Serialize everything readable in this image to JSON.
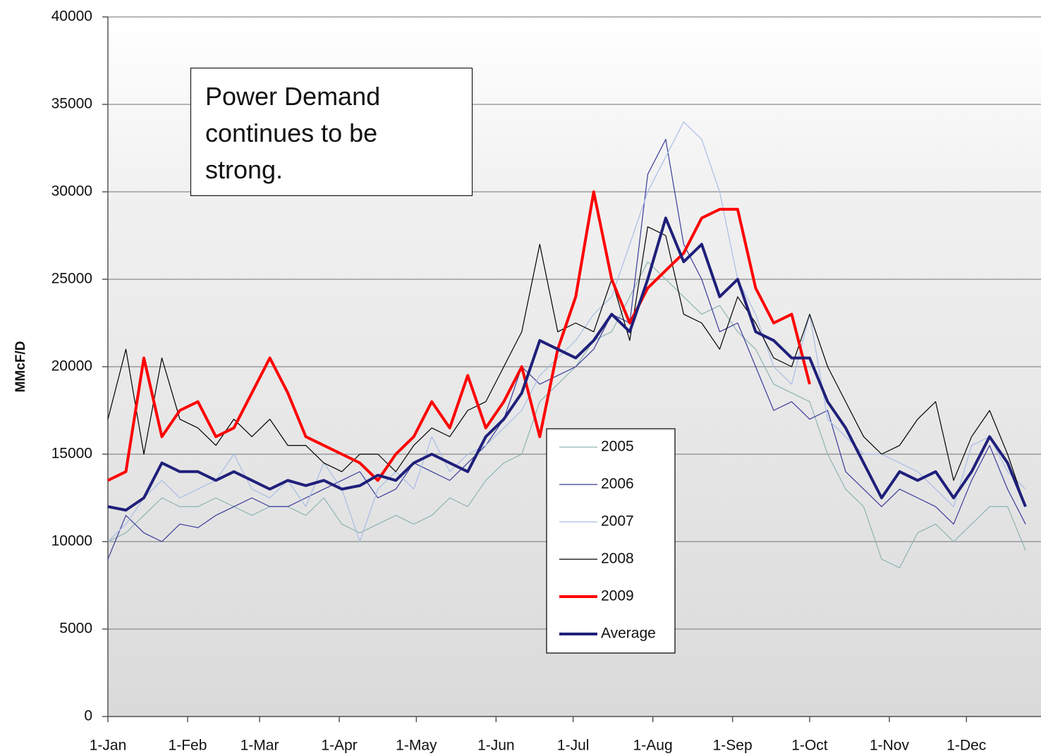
{
  "chart_data": {
    "type": "line",
    "y_label": "MMcF/D",
    "annotation": "Power Demand continues to be strong.",
    "grid": true,
    "xlim": [
      0,
      363
    ],
    "ylim": [
      0,
      40000
    ],
    "yticks": [
      0,
      5000,
      10000,
      15000,
      20000,
      25000,
      30000,
      35000,
      40000
    ],
    "xticks": [
      {
        "value": 0,
        "label": "1-Jan"
      },
      {
        "value": 31,
        "label": "1-Feb"
      },
      {
        "value": 59,
        "label": "1-Mar"
      },
      {
        "value": 90,
        "label": "1-Apr"
      },
      {
        "value": 120,
        "label": "1-May"
      },
      {
        "value": 151,
        "label": "1-Jun"
      },
      {
        "value": 181,
        "label": "1-Jul"
      },
      {
        "value": 212,
        "label": "1-Aug"
      },
      {
        "value": 243,
        "label": "1-Sep"
      },
      {
        "value": 273,
        "label": "1-Oct"
      },
      {
        "value": 304,
        "label": "1-Nov"
      },
      {
        "value": 334,
        "label": "1-Dec"
      }
    ],
    "x": [
      0,
      7,
      14,
      21,
      28,
      35,
      42,
      49,
      56,
      63,
      70,
      77,
      84,
      91,
      98,
      105,
      112,
      119,
      126,
      133,
      140,
      147,
      154,
      161,
      168,
      175,
      182,
      189,
      196,
      203,
      210,
      217,
      224,
      231,
      238,
      245,
      252,
      259,
      266,
      273,
      280,
      287,
      294,
      301,
      308,
      315,
      322,
      329,
      336,
      343,
      350,
      357
    ],
    "series": [
      {
        "name": "2005",
        "color": "#8fb3b3",
        "line_width": 1.2,
        "values": [
          10000,
          10500,
          11500,
          12500,
          12000,
          12000,
          12500,
          12000,
          11500,
          12000,
          12000,
          11500,
          12500,
          11000,
          10500,
          11000,
          11500,
          11000,
          11500,
          12500,
          12000,
          13500,
          14500,
          15000,
          18000,
          19000,
          20000,
          21500,
          22000,
          24000,
          26000,
          25000,
          24000,
          23000,
          23500,
          22000,
          21000,
          19000,
          18500,
          18000,
          15000,
          13000,
          12000,
          9000,
          8500,
          10500,
          11000,
          10000,
          11000,
          12000,
          12000,
          9500
        ]
      },
      {
        "name": "2006",
        "color": "#3b3b9b",
        "line_width": 1.2,
        "values": [
          9000,
          11500,
          10500,
          10000,
          11000,
          10800,
          11500,
          12000,
          12500,
          12000,
          12000,
          12500,
          13000,
          13500,
          14000,
          12500,
          13000,
          14500,
          14000,
          13500,
          14500,
          15500,
          17000,
          20000,
          19000,
          19500,
          20000,
          21000,
          23000,
          22500,
          31000,
          33000,
          27000,
          25000,
          22000,
          22500,
          20000,
          17500,
          18000,
          17000,
          17500,
          14000,
          13000,
          12000,
          13000,
          12500,
          12000,
          11000,
          13500,
          15500,
          13000,
          11000
        ]
      },
      {
        "name": "2007",
        "color": "#a9bde6",
        "line_width": 1.2,
        "values": [
          10000,
          11000,
          12500,
          13500,
          12500,
          13000,
          13500,
          15000,
          13000,
          12500,
          13500,
          12000,
          14500,
          13000,
          10000,
          13000,
          14000,
          13000,
          16000,
          14000,
          15000,
          15500,
          16500,
          17500,
          19500,
          20500,
          21500,
          23000,
          24000,
          27000,
          30000,
          32000,
          34000,
          33000,
          30000,
          25000,
          23000,
          20000,
          19000,
          23000,
          17000,
          16000,
          15000,
          15000,
          14500,
          14000,
          13000,
          12000,
          15500,
          16000,
          14000,
          13000
        ]
      },
      {
        "name": "2008",
        "color": "#000000",
        "line_width": 1.2,
        "values": [
          17000,
          21000,
          15000,
          20500,
          17000,
          16500,
          15500,
          17000,
          16000,
          17000,
          15500,
          15500,
          14500,
          14000,
          15000,
          15000,
          14000,
          15500,
          16500,
          16000,
          17500,
          18000,
          20000,
          22000,
          27000,
          22000,
          22500,
          22000,
          25000,
          21500,
          28000,
          27500,
          23000,
          22500,
          21000,
          24000,
          22500,
          20500,
          20000,
          23000,
          20000,
          18000,
          16000,
          15000,
          15500,
          17000,
          18000,
          13500,
          16000,
          17500,
          15000,
          12000
        ]
      },
      {
        "name": "2009",
        "color": "#ff0000",
        "line_width": 4,
        "values": [
          13500,
          14000,
          20500,
          16000,
          17500,
          18000,
          16000,
          16500,
          18500,
          20500,
          18500,
          16000,
          15500,
          15000,
          14500,
          13500,
          15000,
          16000,
          18000,
          16500,
          19500,
          16500,
          18000,
          20000,
          16000,
          21000,
          24000,
          30000,
          25000,
          22500,
          24500,
          25500,
          26500,
          28500,
          29000,
          29000,
          24500,
          22500,
          23000,
          19000,
          null,
          null,
          null,
          null,
          null,
          null,
          null,
          null,
          null,
          null,
          null,
          null
        ]
      },
      {
        "name": "Average",
        "color": "#1f1f7a",
        "line_width": 4,
        "values": [
          12000,
          11800,
          12500,
          14500,
          14000,
          14000,
          13500,
          14000,
          13500,
          13000,
          13500,
          13200,
          13500,
          13000,
          13200,
          13800,
          13500,
          14500,
          15000,
          14500,
          14000,
          16000,
          17000,
          18500,
          21500,
          21000,
          20500,
          21500,
          23000,
          22000,
          25000,
          28500,
          26000,
          27000,
          24000,
          25000,
          22000,
          21500,
          20500,
          20500,
          18000,
          16500,
          14500,
          12500,
          14000,
          13500,
          14000,
          12500,
          14000,
          16000,
          14500,
          12000
        ]
      }
    ]
  }
}
